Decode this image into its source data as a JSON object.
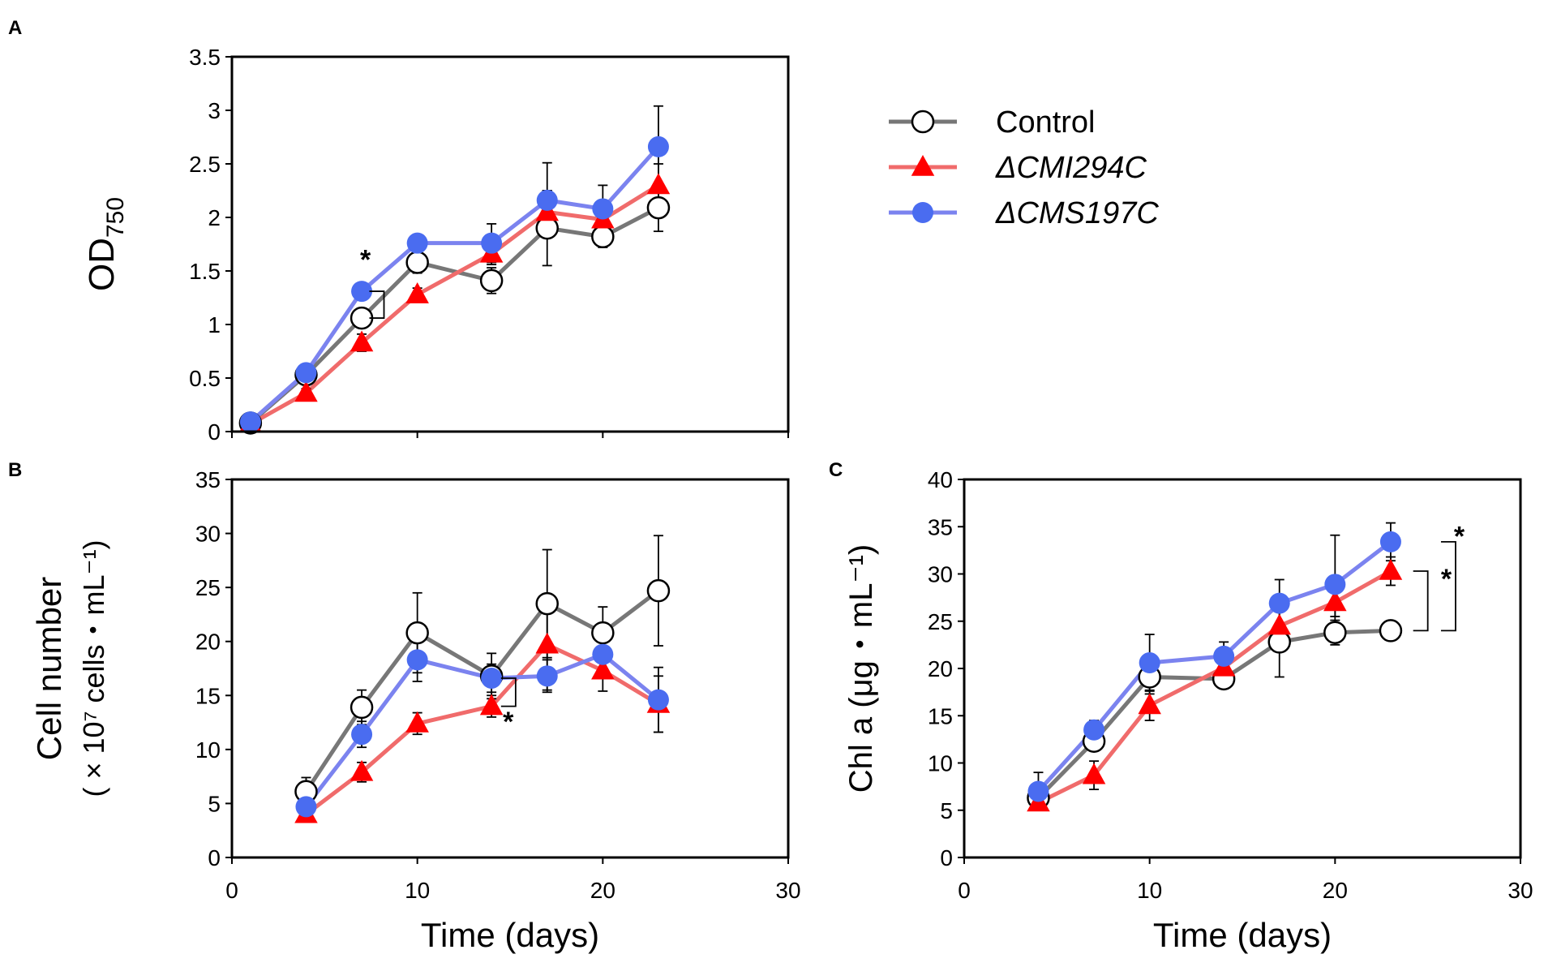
{
  "colors": {
    "control": "#777777",
    "cmi": "#f06b6b",
    "cms": "#7b83ef",
    "cmi_marker": "#ff0000",
    "cms_marker": "#4a6cf0",
    "control_marker_stroke": "#000000",
    "frame": "#000000"
  },
  "legend": {
    "items": [
      {
        "label": "Control",
        "italic": false,
        "marker": "circle-open",
        "series_key": "control"
      },
      {
        "label": "ΔCMI294C",
        "italic": true,
        "marker": "triangle",
        "series_key": "cmi"
      },
      {
        "label": "ΔCMS197C",
        "italic": true,
        "marker": "circle-filled",
        "series_key": "cms"
      }
    ]
  },
  "chart_data": [
    {
      "panel": "A",
      "type": "line",
      "title": "",
      "xlabel": "",
      "ylabel": "OD",
      "ylabel_sub": "750",
      "xlim": [
        0,
        30
      ],
      "ylim": [
        0,
        3.5
      ],
      "xticks": [
        0,
        10,
        20,
        30
      ],
      "show_xtick_labels": false,
      "yticks": [
        0,
        0.5,
        1,
        1.5,
        2,
        2.5,
        3,
        3.5
      ],
      "ytick_labels": [
        "0",
        "0.5",
        "1",
        "1.5",
        "2",
        "2.5",
        "3",
        "3.5"
      ],
      "series": [
        {
          "key": "control",
          "name": "Control",
          "x": [
            1,
            4,
            7,
            10,
            14,
            17,
            20,
            23
          ],
          "values": [
            0.08,
            0.53,
            1.06,
            1.58,
            1.41,
            1.9,
            1.82,
            2.09
          ],
          "err": [
            0.03,
            0.05,
            0.08,
            0.1,
            0.12,
            0.35,
            0.1,
            0.22
          ]
        },
        {
          "key": "cmi",
          "name": "ΔCMI294C",
          "x": [
            1,
            4,
            7,
            10,
            14,
            17,
            20,
            23
          ],
          "values": [
            0.07,
            0.36,
            0.83,
            1.28,
            1.66,
            2.05,
            1.98,
            2.3
          ],
          "err": [
            0.02,
            0.04,
            0.08,
            0.06,
            0.1,
            0.2,
            0.1,
            0.2
          ]
        },
        {
          "key": "cms",
          "name": "ΔCMS197C",
          "x": [
            1,
            4,
            7,
            10,
            14,
            17,
            20,
            23
          ],
          "values": [
            0.09,
            0.55,
            1.31,
            1.76,
            1.76,
            2.16,
            2.08,
            2.66
          ],
          "err": [
            0.03,
            0.05,
            0.05,
            0.06,
            0.18,
            0.35,
            0.22,
            0.38
          ]
        }
      ],
      "annotations": [
        {
          "text": "*",
          "x": 7.2,
          "y": 1.52
        }
      ],
      "brackets": [
        {
          "x": 8.2,
          "y1": 1.06,
          "y2": 1.31
        }
      ]
    },
    {
      "panel": "B",
      "type": "line",
      "title": "",
      "xlabel": "Time (days)",
      "ylabel": "Cell number",
      "ylabel2": "( × 10⁷ cells・mL⁻¹)",
      "xlim": [
        0,
        30
      ],
      "ylim": [
        0,
        35
      ],
      "xticks": [
        0,
        10,
        20,
        30
      ],
      "xtick_labels": [
        "0",
        "10",
        "20",
        "30"
      ],
      "show_xtick_labels": true,
      "yticks": [
        0,
        5,
        10,
        15,
        20,
        25,
        30,
        35
      ],
      "ytick_labels": [
        "0",
        "5",
        "10",
        "15",
        "20",
        "25",
        "30",
        "35"
      ],
      "series": [
        {
          "key": "control",
          "name": "Control",
          "x": [
            4,
            7,
            10,
            14,
            17,
            20,
            23
          ],
          "values": [
            6.1,
            13.9,
            20.8,
            16.8,
            23.5,
            20.8,
            24.7
          ],
          "err": [
            1.3,
            1.6,
            3.7,
            2.1,
            5.0,
            2.4,
            5.1
          ]
        },
        {
          "key": "cmi",
          "name": "ΔCMI294C",
          "x": [
            4,
            7,
            10,
            14,
            17,
            20,
            23
          ],
          "values": [
            4.0,
            7.9,
            12.4,
            14.0,
            19.7,
            17.3,
            14.2
          ],
          "err": [
            0.5,
            0.9,
            1.0,
            1.0,
            4.2,
            1.9,
            2.6
          ]
        },
        {
          "key": "cms",
          "name": "ΔCMS197C",
          "x": [
            4,
            7,
            10,
            14,
            17,
            20,
            23
          ],
          "values": [
            4.7,
            11.4,
            18.3,
            16.6,
            16.8,
            18.8,
            14.6
          ],
          "err": [
            0.5,
            1.2,
            2.0,
            1.3,
            1.5,
            1.5,
            3.0
          ]
        }
      ],
      "annotations": [
        {
          "text": "*",
          "x": 14.9,
          "y": 11.7
        }
      ],
      "brackets": [
        {
          "x": 15.3,
          "y1": 14.0,
          "y2": 16.6
        }
      ]
    },
    {
      "panel": "C",
      "type": "line",
      "title": "",
      "xlabel": "Time (days)",
      "ylabel": "Chl a (μg・mL⁻¹)",
      "xlim": [
        0,
        30
      ],
      "ylim": [
        0,
        40
      ],
      "xticks": [
        0,
        10,
        20,
        30
      ],
      "xtick_labels": [
        "0",
        "10",
        "20",
        "30"
      ],
      "show_xtick_labels": true,
      "yticks": [
        0,
        5,
        10,
        15,
        20,
        25,
        30,
        35,
        40
      ],
      "ytick_labels": [
        "0",
        "5",
        "10",
        "15",
        "20",
        "25",
        "30",
        "35",
        "40"
      ],
      "series": [
        {
          "key": "control",
          "name": "Control",
          "x": [
            4,
            7,
            10,
            14,
            17,
            20,
            23
          ],
          "values": [
            6.3,
            12.3,
            19.1,
            18.9,
            22.8,
            23.8,
            24.0
          ],
          "err": [
            0.8,
            1.0,
            1.8,
            0.9,
            3.7,
            1.3,
            1.0
          ]
        },
        {
          "key": "cmi",
          "name": "ΔCMI294C",
          "x": [
            4,
            7,
            10,
            14,
            17,
            20,
            23
          ],
          "values": [
            5.8,
            8.7,
            16.1,
            20.1,
            24.5,
            27.0,
            30.3
          ],
          "err": [
            0.5,
            1.5,
            1.6,
            1.0,
            1.7,
            1.5,
            1.5
          ]
        },
        {
          "key": "cms",
          "name": "ΔCMS197C",
          "x": [
            4,
            7,
            10,
            14,
            17,
            20,
            23
          ],
          "values": [
            7.0,
            13.5,
            20.6,
            21.3,
            26.9,
            28.9,
            33.4
          ],
          "err": [
            2.0,
            1.0,
            3.0,
            1.5,
            2.5,
            5.2,
            2.0
          ]
        }
      ],
      "annotations": [
        {
          "text": "*",
          "x": 26.0,
          "y": 28.5
        },
        {
          "text": "*",
          "x": 26.7,
          "y": 33.0
        }
      ],
      "brackets": [
        {
          "x": 25.0,
          "y1": 24.0,
          "y2": 30.3
        },
        {
          "x": 26.5,
          "y1": 24.0,
          "y2": 33.4
        }
      ]
    }
  ]
}
